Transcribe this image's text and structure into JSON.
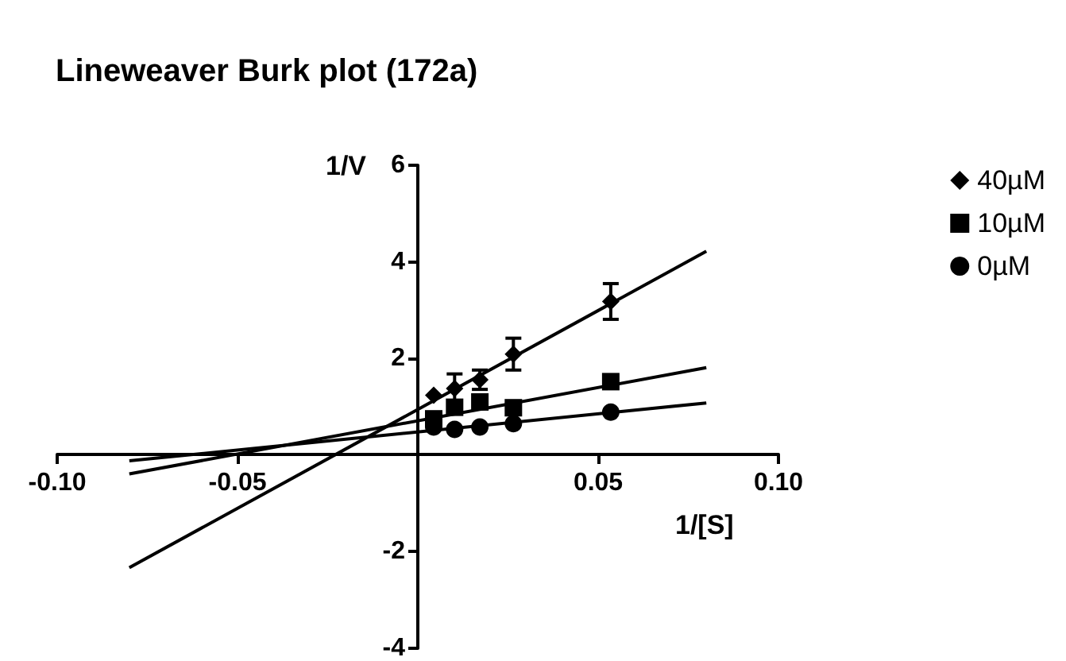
{
  "chart_data": {
    "type": "scatter",
    "title": "Lineweaver Burk plot (172a)",
    "xlabel": "1/[S]",
    "ylabel": "1/V",
    "xlim": [
      -0.1,
      0.1
    ],
    "ylim": [
      -4,
      6
    ],
    "xticks": [
      {
        "value": -0.1,
        "label": "-0.10"
      },
      {
        "value": -0.05,
        "label": "-0.05"
      },
      {
        "value": 0.05,
        "label": "0.05"
      },
      {
        "value": 0.1,
        "label": "0.10"
      }
    ],
    "yticks": [
      -4,
      -2,
      2,
      4,
      6
    ],
    "grid": false,
    "legend": "right",
    "series": [
      {
        "name": "40µM",
        "color": "#000000",
        "marker": "diamond",
        "x": [
          0.0044,
          0.0102,
          0.0172,
          0.0265,
          0.0535
        ],
        "values": [
          1.24,
          1.38,
          1.56,
          2.09,
          3.18
        ],
        "errors": [
          null,
          0.3,
          0.2,
          0.33,
          0.37
        ]
      },
      {
        "name": "10µM",
        "color": "#000000",
        "marker": "square",
        "x": [
          0.0044,
          0.0102,
          0.0172,
          0.0265,
          0.0535
        ],
        "values": [
          0.75,
          0.99,
          1.1,
          0.98,
          1.52
        ]
      },
      {
        "name": "0µM",
        "color": "#000000",
        "marker": "circle",
        "x": [
          0.0044,
          0.0102,
          0.0172,
          0.0265,
          0.0535
        ],
        "values": [
          0.58,
          0.53,
          0.58,
          0.65,
          0.89
        ]
      },
      {
        "type": "line",
        "color": "#000000",
        "marker": "none",
        "x": [
          -0.08,
          0.08
        ],
        "values": [
          -2.33,
          4.22
        ]
      },
      {
        "type": "line",
        "color": "#000000",
        "marker": "none",
        "x": [
          -0.08,
          0.08
        ],
        "values": [
          -0.39,
          1.81
        ]
      },
      {
        "type": "line",
        "color": "#000000",
        "marker": "none",
        "x": [
          -0.08,
          0.08
        ],
        "values": [
          -0.12,
          1.08
        ]
      }
    ]
  }
}
